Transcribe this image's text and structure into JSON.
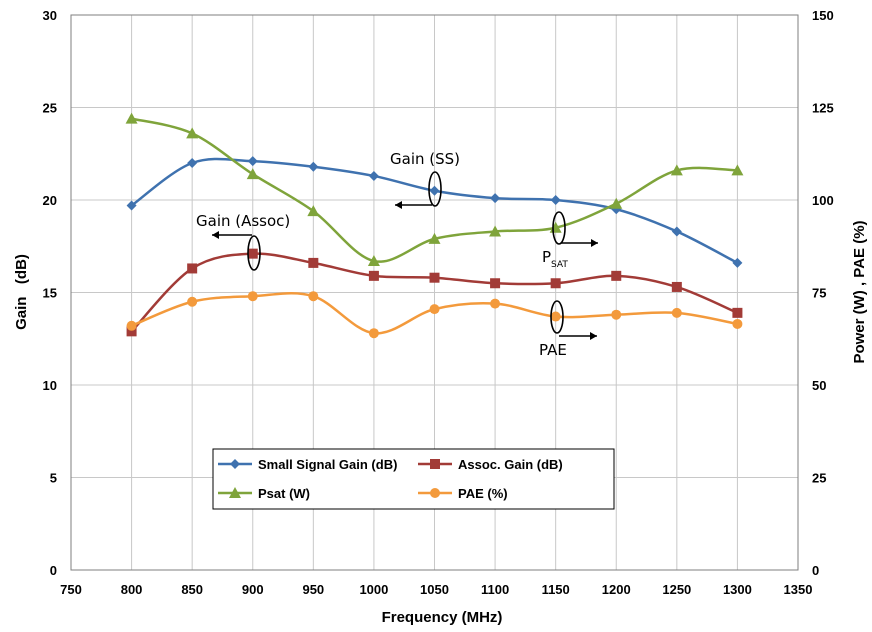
{
  "chart_data": {
    "type": "line",
    "xlabel": "Frequency (MHz)",
    "ylabel_left": "Gain   (dB)",
    "ylabel_right": "Power (W) , PAE (%)",
    "xlim": [
      750,
      1350
    ],
    "x_ticks": [
      750,
      800,
      850,
      900,
      950,
      1000,
      1050,
      1100,
      1150,
      1200,
      1250,
      1300,
      1350
    ],
    "ylim_left": [
      0,
      30
    ],
    "y_ticks_left": [
      0,
      5,
      10,
      15,
      20,
      25,
      30
    ],
    "ylim_right": [
      0,
      150
    ],
    "y_ticks_right": [
      0,
      25,
      50,
      75,
      100,
      125,
      150
    ],
    "grid": true,
    "legend_position": "bottom-center",
    "x": [
      800,
      850,
      900,
      950,
      1000,
      1050,
      1100,
      1150,
      1200,
      1250,
      1300
    ],
    "series": [
      {
        "name": "Small Signal Gain (dB)",
        "axis": "left",
        "color": "#3f72af",
        "marker": "diamond",
        "values": [
          19.7,
          22.0,
          22.1,
          21.8,
          21.3,
          20.5,
          20.1,
          20.0,
          19.5,
          18.3,
          16.6
        ]
      },
      {
        "name": "Assoc. Gain (dB)",
        "axis": "left",
        "color": "#a23b37",
        "marker": "square",
        "values": [
          12.9,
          16.3,
          17.1,
          16.6,
          15.9,
          15.8,
          15.5,
          15.5,
          15.9,
          15.3,
          13.9
        ]
      },
      {
        "name": "Psat (W)",
        "axis": "right",
        "color": "#7fa43b",
        "marker": "triangle",
        "values": [
          122,
          118,
          107,
          97,
          83.5,
          89.5,
          91.5,
          92.5,
          99,
          108,
          108
        ]
      },
      {
        "name": "PAE (%)",
        "axis": "right",
        "color": "#f39a3c",
        "marker": "circle",
        "values": [
          66,
          72.5,
          74,
          74,
          64,
          70.5,
          72,
          68.5,
          69,
          69.5,
          66.5
        ]
      }
    ],
    "annotations": [
      {
        "text": "Gain (SS)"
      },
      {
        "text": "Gain (Assoc)"
      },
      {
        "text": "P",
        "sub": "SAT"
      },
      {
        "text": "PAE"
      }
    ]
  }
}
